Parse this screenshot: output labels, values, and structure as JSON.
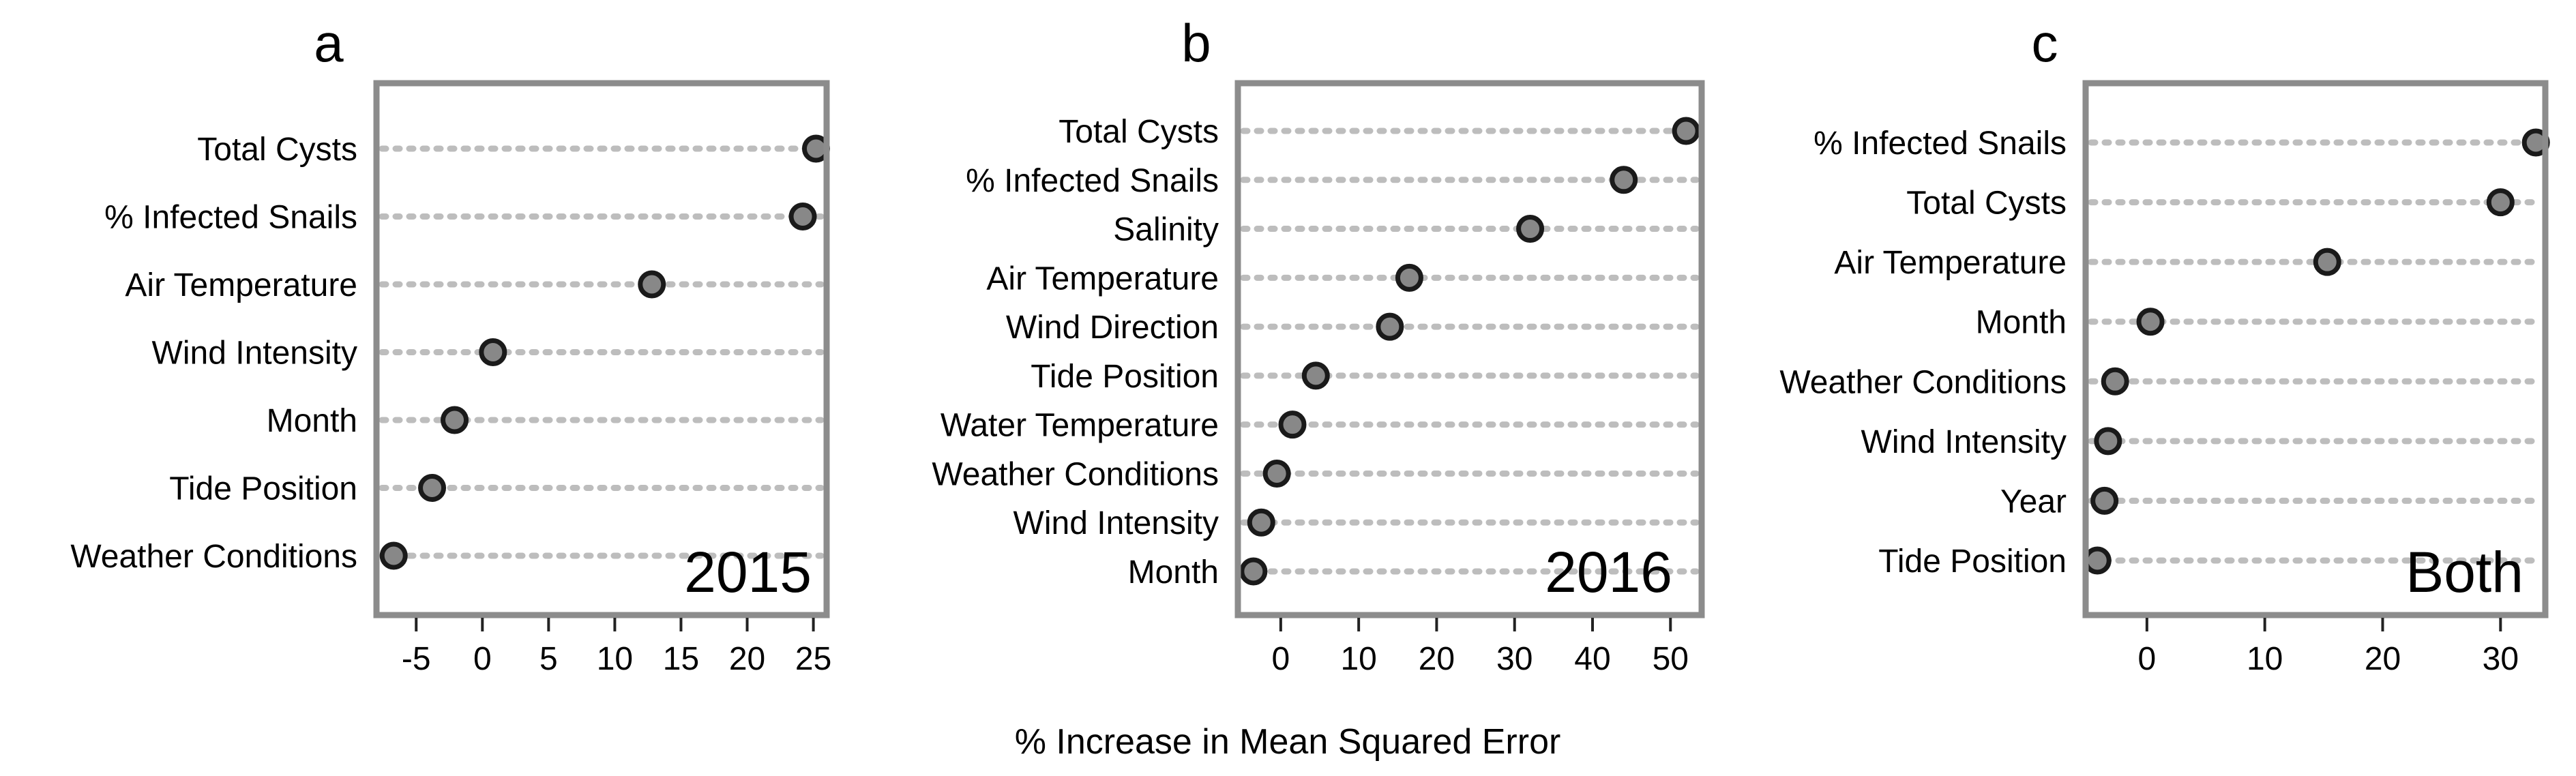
{
  "chart_data": [
    {
      "type": "dot",
      "panel_letter": "a",
      "year_label": "2015",
      "xlim": [
        -8,
        26
      ],
      "xticks": [
        -5,
        0,
        5,
        10,
        15,
        20,
        25
      ],
      "xtick_labels": [
        "-5",
        "0",
        "5",
        "10",
        "15",
        "20",
        "25"
      ],
      "categories": [
        "Total Cysts",
        "% Infected Snails",
        "Air Temperature",
        "Wind Intensity",
        "Month",
        "Tide Position",
        "Weather Conditions"
      ],
      "values": [
        25.2,
        24.2,
        12.8,
        0.8,
        -2.1,
        -3.8,
        -6.7
      ]
    },
    {
      "type": "dot",
      "panel_letter": "b",
      "year_label": "2016",
      "xlim": [
        -5.5,
        54
      ],
      "xticks": [
        0,
        10,
        20,
        30,
        40,
        50
      ],
      "xtick_labels": [
        "0",
        "10",
        "20",
        "30",
        "40",
        "50"
      ],
      "categories": [
        "Total Cysts",
        "% Infected Snails",
        "Salinity",
        "Air Temperature",
        "Wind Direction",
        "Tide Position",
        "Water Temperature",
        "Weather Conditions",
        "Wind Intensity",
        "Month"
      ],
      "values": [
        52.0,
        44.0,
        32.0,
        16.5,
        14.0,
        4.5,
        1.5,
        -0.5,
        -2.5,
        -3.5
      ]
    },
    {
      "type": "dot",
      "panel_letter": "c",
      "year_label": "Both",
      "xlim": [
        -5.2,
        33.8
      ],
      "xticks": [
        0,
        10,
        20,
        30
      ],
      "xtick_labels": [
        "0",
        "10",
        "20",
        "30"
      ],
      "categories": [
        "% Infected Snails",
        "Total Cysts",
        "Air Temperature",
        "Month",
        "Weather Conditions",
        "Wind Intensity",
        "Year",
        "Tide Position"
      ],
      "values": [
        33.0,
        30.0,
        15.3,
        0.3,
        -2.7,
        -3.3,
        -3.6,
        -4.2
      ]
    }
  ],
  "shared_xlabel": "% Increase in Mean Squared Error",
  "colors": {
    "frame": "#8c8c8c",
    "dot_fill": "#888888",
    "dot_stroke": "#1a1a1a",
    "dotted_line": "#bdbdbd"
  }
}
